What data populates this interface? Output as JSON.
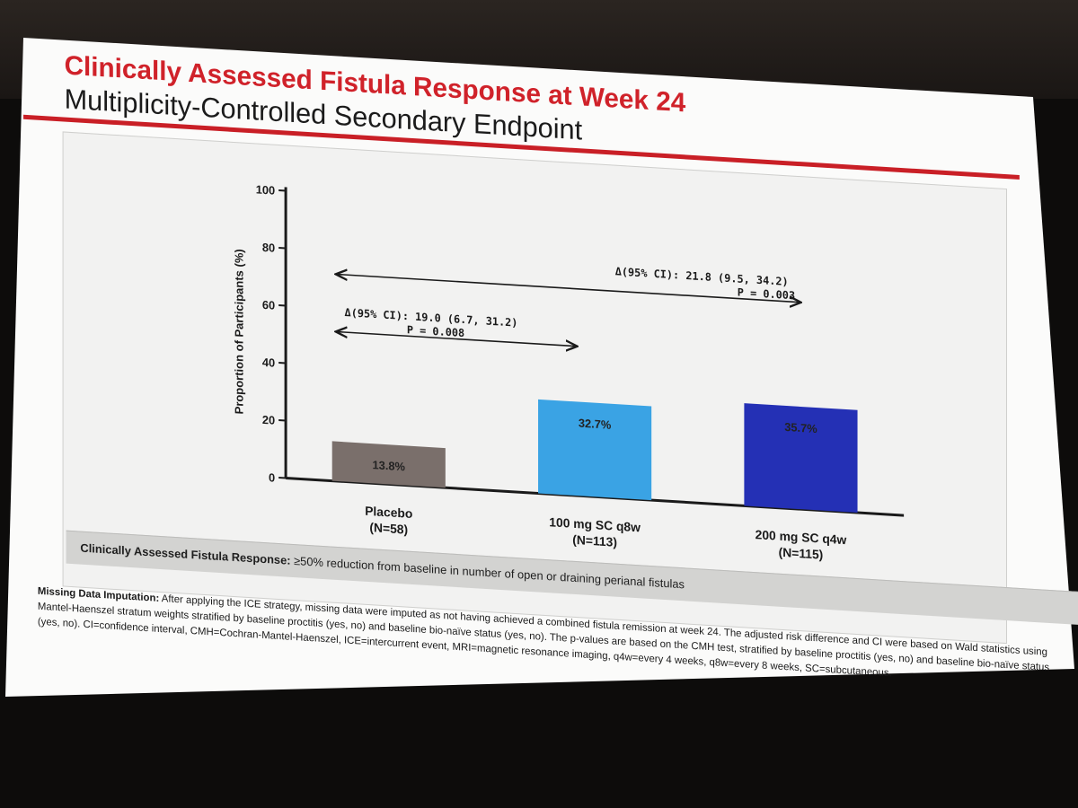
{
  "slide": {
    "title": "Clinically Assessed Fistula Response at Week 24",
    "subtitle": "Multiplicity-Controlled Secondary Endpoint",
    "definition_label": "Clinically Assessed Fistula Response:",
    "definition_text": " ≥50% reduction from baseline in number of open or draining perianal fistulas",
    "footnote_label": "Missing Data Imputation:",
    "footnote_text": " After applying the ICE strategy, missing data were imputed as not having achieved a combined fistula remission at week 24. The adjusted risk difference and CI were based on Wald statistics using Mantel-Haenszel stratum weights stratified by baseline proctitis (yes, no) and baseline bio-naïve status (yes, no). The p-values are based on the CMH test, stratified by baseline proctitis (yes, no) and baseline bio-naïve status (yes, no). CI=confidence interval, CMH=Cochran-Mantel-Haenszel, ICE=intercurrent event, MRI=magnetic resonance imaging, q4w=every 4 weeks, q8w=every 8 weeks, SC=subcutaneous."
  },
  "colors": {
    "title_red": "#d0222a",
    "placebo": "#7a6f6b",
    "dose_100": "#3aa3e4",
    "dose_200": "#2430b5"
  },
  "chart_data": {
    "type": "bar",
    "ylabel": "Proportion of Participants (%)",
    "ylim": [
      0,
      100
    ],
    "yticks": [
      0,
      20,
      40,
      60,
      80,
      100
    ],
    "categories": [
      {
        "name": "Placebo",
        "n": "(N=58)"
      },
      {
        "name": "100 mg SC q8w",
        "n": "(N=113)"
      },
      {
        "name": "200 mg SC q4w",
        "n": "(N=115)"
      }
    ],
    "values": [
      13.8,
      32.7,
      35.7
    ],
    "value_labels": [
      "13.8%",
      "32.7%",
      "35.7%"
    ],
    "bar_colors": [
      "#7a6f6b",
      "#3aa3e4",
      "#2430b5"
    ],
    "annotations": [
      {
        "from": 0,
        "to": 1,
        "text": "Δ(95% CI): 19.0 (6.7, 31.2)",
        "p": "P = 0.008"
      },
      {
        "from": 0,
        "to": 2,
        "text": "Δ(95% CI): 21.8 (9.5, 34.2)",
        "p": "P = 0.003"
      }
    ],
    "grid": false,
    "legend": "none"
  }
}
